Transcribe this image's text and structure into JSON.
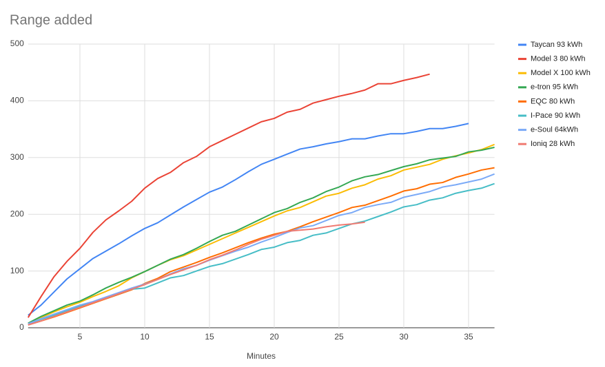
{
  "chart_data": {
    "type": "line",
    "title": "Range added",
    "x_label": "Minutes",
    "x": [
      1,
      2,
      3,
      4,
      5,
      6,
      7,
      8,
      9,
      10,
      11,
      12,
      13,
      14,
      15,
      16,
      17,
      18,
      19,
      20,
      21,
      22,
      23,
      24,
      25,
      26,
      27,
      28,
      29,
      30,
      31,
      32,
      33,
      34,
      35,
      36,
      37
    ],
    "xlim": [
      1,
      37
    ],
    "xticks": [
      5,
      10,
      15,
      20,
      25,
      30,
      35
    ],
    "ylim": [
      0,
      500
    ],
    "yticks": [
      0,
      100,
      200,
      300,
      400,
      500
    ],
    "grid": true,
    "legend": "right",
    "series": [
      {
        "name": "Taycan 93 kWh",
        "color": "#4285f4",
        "values": [
          22,
          40,
          63,
          86,
          104,
          122,
          135,
          148,
          162,
          175,
          185,
          199,
          213,
          226,
          239,
          248,
          261,
          275,
          288,
          297,
          306,
          315,
          319,
          324,
          328,
          333,
          333,
          338,
          342,
          342,
          346,
          351,
          351,
          355,
          360,
          null,
          null
        ]
      },
      {
        "name": "Model 3 80 kWh",
        "color": "#ea4335",
        "values": [
          18,
          55,
          90,
          117,
          140,
          168,
          190,
          206,
          223,
          246,
          263,
          274,
          291,
          302,
          319,
          330,
          341,
          352,
          363,
          369,
          380,
          385,
          396,
          402,
          408,
          413,
          419,
          430,
          430,
          436,
          441,
          447,
          null,
          null,
          null,
          null,
          null
        ]
      },
      {
        "name": "Model X 100 kWh",
        "color": "#fbbc04",
        "values": [
          8,
          18,
          28,
          37,
          45,
          55,
          64,
          74,
          88,
          99,
          110,
          120,
          127,
          137,
          147,
          157,
          167,
          177,
          187,
          197,
          206,
          212,
          222,
          232,
          237,
          246,
          252,
          262,
          268,
          278,
          283,
          288,
          297,
          303,
          308,
          314,
          323
        ]
      },
      {
        "name": "e-tron 95 kWh",
        "color": "#34a853",
        "values": [
          8,
          20,
          30,
          40,
          47,
          58,
          70,
          80,
          89,
          99,
          110,
          121,
          129,
          140,
          152,
          163,
          170,
          181,
          192,
          203,
          210,
          221,
          229,
          240,
          248,
          259,
          266,
          270,
          277,
          284,
          289,
          296,
          299,
          302,
          310,
          313,
          318
        ]
      },
      {
        "name": "EQC 80 kWh",
        "color": "#ff6d01",
        "values": [
          5,
          12,
          19,
          27,
          35,
          43,
          51,
          59,
          67,
          78,
          87,
          99,
          107,
          115,
          124,
          132,
          141,
          150,
          158,
          165,
          170,
          178,
          187,
          195,
          203,
          212,
          216,
          224,
          232,
          241,
          245,
          253,
          256,
          265,
          271,
          278,
          282
        ]
      },
      {
        "name": "I-Pace 90 kWh",
        "color": "#46bdc6",
        "values": [
          7,
          15,
          22,
          30,
          38,
          45,
          52,
          60,
          68,
          70,
          79,
          88,
          92,
          100,
          108,
          113,
          121,
          129,
          138,
          142,
          150,
          154,
          163,
          167,
          175,
          183,
          188,
          196,
          204,
          213,
          217,
          225,
          229,
          237,
          242,
          246,
          254
        ]
      },
      {
        "name": "e-Soul 64kWh",
        "color": "#7baaf7",
        "values": [
          7,
          16,
          24,
          32,
          40,
          46,
          54,
          62,
          70,
          77,
          85,
          95,
          104,
          110,
          119,
          127,
          135,
          142,
          151,
          159,
          168,
          176,
          180,
          189,
          198,
          203,
          212,
          217,
          221,
          230,
          235,
          240,
          248,
          252,
          257,
          262,
          271
        ]
      },
      {
        "name": "Ioniq 28 kWh",
        "color": "#f07b72",
        "values": [
          5,
          12,
          20,
          28,
          36,
          44,
          52,
          60,
          68,
          76,
          85,
          94,
          102,
          110,
          120,
          128,
          137,
          147,
          156,
          163,
          170,
          172,
          174,
          178,
          181,
          183,
          186,
          null,
          null,
          null,
          null,
          null,
          null,
          null,
          null,
          null,
          null
        ]
      }
    ]
  }
}
